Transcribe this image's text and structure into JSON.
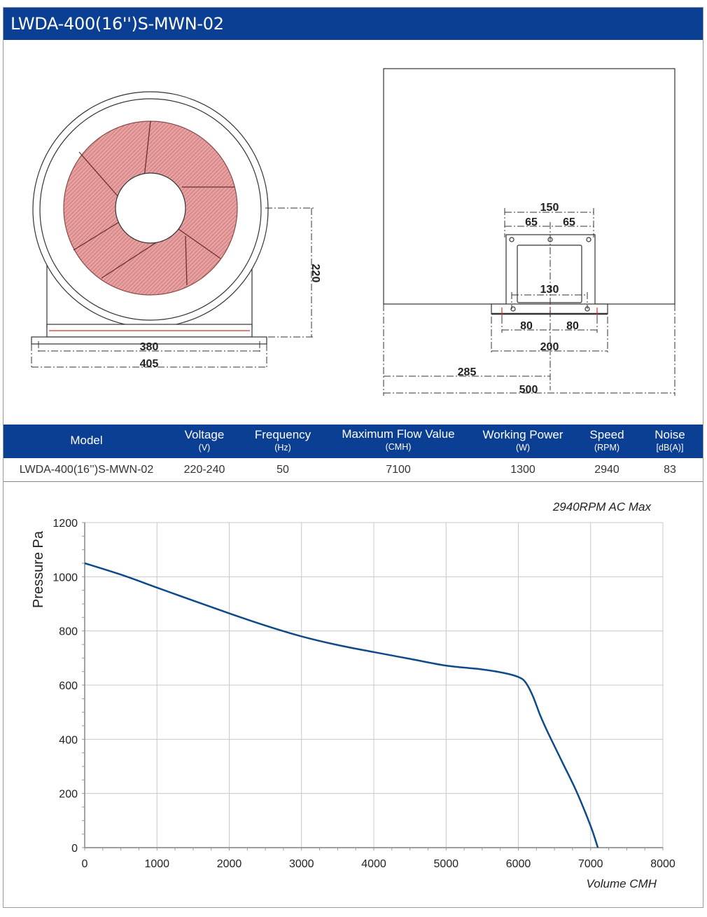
{
  "title": "LWDA-400(16'')S-MWN-02",
  "drawing": {
    "front_dims": {
      "height": "220",
      "inner_width": "380",
      "outer_width": "405"
    },
    "side_dims": {
      "d150": "150",
      "d65a": "65",
      "d65b": "65",
      "d130": "130",
      "d80a": "80",
      "d80b": "80",
      "d200": "200",
      "d285": "285",
      "d500": "500"
    }
  },
  "specs": {
    "headers": [
      {
        "main": "Model",
        "unit": ""
      },
      {
        "main": "Voltage",
        "unit": "(V)"
      },
      {
        "main": "Frequency",
        "unit": "(Hz)"
      },
      {
        "main": "Maximum Flow Value",
        "unit": "(CMH)"
      },
      {
        "main": "Working Power",
        "unit": "(W)"
      },
      {
        "main": "Speed",
        "unit": "(RPM)"
      },
      {
        "main": "Noise",
        "unit": "[dB(A)]"
      }
    ],
    "row": [
      "LWDA-400(16’’)S-MWN-02",
      "220-240",
      "50",
      "7100",
      "1300",
      "2940",
      "83"
    ]
  },
  "chart_data": {
    "type": "line",
    "title": "2940RPM AC Max",
    "xlabel": "Volume CMH",
    "ylabel": "Pressure  Pa",
    "xlim": [
      0,
      8000
    ],
    "ylim": [
      0,
      1200
    ],
    "xticks": [
      "0",
      "1000",
      "2000",
      "3000",
      "4000",
      "5000",
      "6000",
      "7000",
      "8000"
    ],
    "yticks": [
      "0",
      "200",
      "400",
      "600",
      "800",
      "1000",
      "1200"
    ],
    "grid": true,
    "color": "#0d4a8a",
    "series": [
      {
        "x": [
          0,
          500,
          1000,
          1500,
          2000,
          2500,
          3000,
          3500,
          4000,
          4500,
          5000,
          5500,
          5800,
          6000,
          6100,
          6200,
          6300,
          6400,
          6600,
          6800,
          7000,
          7100
        ],
        "y": [
          1050,
          1008,
          960,
          912,
          865,
          820,
          780,
          748,
          722,
          697,
          672,
          658,
          645,
          630,
          610,
          560,
          490,
          430,
          320,
          210,
          80,
          0
        ]
      }
    ]
  }
}
